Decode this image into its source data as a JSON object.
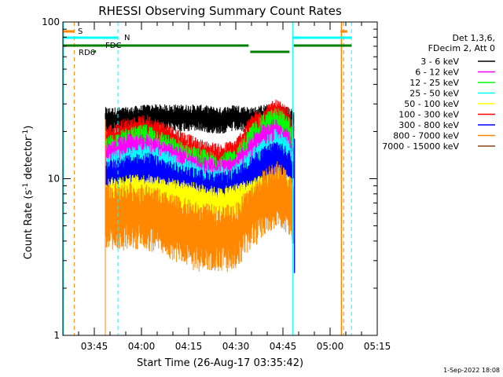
{
  "chart_data": {
    "type": "line",
    "title": "RHESSI Observing Summary Count Rates",
    "xlabel": "Start Time (26-Aug-17 03:35:42)",
    "ylabel": "Count Rate (s⁻¹ detector⁻¹)",
    "ylabel_main": "Count Rate (s",
    "ylabel_sup1": "-1",
    "ylabel_mid": " detector",
    "ylabel_sup2": "-1",
    "ylabel_end": ")",
    "yscale": "log",
    "ylim": [
      1,
      100
    ],
    "xlim_minutes": [
      0,
      100
    ],
    "y_ticks": [
      {
        "value": 1,
        "label": "1"
      },
      {
        "value": 10,
        "label": "10"
      },
      {
        "value": 100,
        "label": "100"
      }
    ],
    "x_ticks": [
      {
        "minute": 10,
        "label": "03:45"
      },
      {
        "minute": 25,
        "label": "04:00"
      },
      {
        "minute": 40,
        "label": "04:15"
      },
      {
        "minute": 55,
        "label": "04:30"
      },
      {
        "minute": 70,
        "label": "04:45"
      },
      {
        "minute": 85,
        "label": "05:00"
      },
      {
        "minute": 100,
        "label": "05:15"
      }
    ],
    "legend": {
      "header1": "Det 1,3,6,",
      "header2": "FDecim 2, Att 0",
      "entries": [
        {
          "label": "3 - 6 keV",
          "color": "#000000"
        },
        {
          "label": "6 - 12 keV",
          "color": "#ff00ff"
        },
        {
          "label": "12 - 25 keV",
          "color": "#00ff00"
        },
        {
          "label": "25 - 50 keV",
          "color": "#00ffff"
        },
        {
          "label": "50 - 100 keV",
          "color": "#ffff00"
        },
        {
          "label": "100 - 300 keV",
          "color": "#ff0000"
        },
        {
          "label": "300 - 800 keV",
          "color": "#0000ff"
        },
        {
          "label": "800 - 7000 keV",
          "color": "#ff8800"
        },
        {
          "label": "7000 - 15000 keV",
          "color": "#8b4513"
        }
      ]
    },
    "markers": {
      "saa_label": "S",
      "night_label": "N",
      "decimation_label": "FDC",
      "rate_decim_label": "RD6",
      "saa_lines_min": [
        3.6,
        89.3
      ],
      "night_lines_min": [
        17.5,
        91.8
      ],
      "saa_bars": [
        [
          0,
          3.5
        ],
        [
          88.3,
          90.5
        ]
      ],
      "night_bars": [
        [
          0,
          17.4
        ],
        [
          73.1,
          91.8
        ]
      ],
      "green_bars": [
        [
          0,
          59.1
        ],
        [
          59.6,
          72.1
        ],
        [
          73.4,
          91.8
        ]
      ],
      "saa_fill_min": [
        [
          13.0,
          13.3
        ],
        [
          88.5,
          88.8
        ]
      ]
    },
    "series": [
      {
        "name": "3 - 6 keV",
        "color": "#000000",
        "x": [
          13.5,
          20,
          27,
          35,
          43,
          50,
          55,
          60,
          64,
          68,
          72,
          73.5
        ],
        "values": [
          24,
          24,
          25,
          25,
          25,
          24,
          25,
          24,
          25,
          25,
          24,
          23
        ]
      },
      {
        "name": "100 - 300 keV",
        "color": "#ff0000",
        "x": [
          13.5,
          20,
          27,
          35,
          43,
          50,
          55,
          60,
          64,
          68,
          72,
          73.5
        ],
        "values": [
          17,
          19,
          20,
          17,
          14,
          13,
          14,
          20,
          23,
          25,
          22,
          17
        ]
      },
      {
        "name": "12 - 25 keV",
        "color": "#00ff00",
        "x": [
          13.5,
          20,
          27,
          35,
          43,
          50,
          55,
          60,
          64,
          68,
          72,
          73.5
        ],
        "values": [
          14,
          16,
          17,
          14,
          12,
          11,
          12,
          17,
          20,
          22,
          19,
          14
        ]
      },
      {
        "name": "6 - 12 keV",
        "color": "#ff00ff",
        "x": [
          13.5,
          20,
          27,
          35,
          43,
          50,
          55,
          60,
          64,
          68,
          72,
          73.5
        ],
        "values": [
          13,
          15,
          15,
          13,
          11,
          10.5,
          11,
          15,
          18,
          19,
          16,
          12
        ]
      },
      {
        "name": "25 - 50 keV",
        "color": "#00ffff",
        "x": [
          13.5,
          20,
          27,
          35,
          43,
          50,
          55,
          60,
          64,
          68,
          72,
          73.5
        ],
        "values": [
          11,
          12,
          13,
          11,
          9.5,
          9,
          9.5,
          12,
          14,
          16,
          14,
          10
        ]
      },
      {
        "name": "300 - 800 keV",
        "color": "#0000ff",
        "x": [
          13.5,
          20,
          27,
          35,
          43,
          50,
          55,
          60,
          64,
          68,
          72,
          73.5
        ],
        "values": [
          10,
          11,
          11.5,
          10,
          9,
          8.5,
          9,
          11,
          12.5,
          14,
          12,
          10
        ]
      },
      {
        "name": "50 - 100 keV",
        "color": "#ffff00",
        "x": [
          13.5,
          20,
          27,
          35,
          43,
          50,
          55,
          60,
          64,
          68,
          72,
          73.5
        ],
        "values": [
          8,
          8.5,
          8.5,
          8,
          7.5,
          7,
          7.5,
          8,
          8.5,
          9,
          8.5,
          8
        ]
      },
      {
        "name": "800 - 7000 keV",
        "color": "#ff8800",
        "x": [
          13.5,
          20,
          27,
          35,
          43,
          50,
          55,
          60,
          64,
          68,
          72,
          73.5
        ],
        "values": [
          6,
          6.2,
          6,
          5.2,
          4.6,
          4.4,
          4.6,
          6,
          7.5,
          8.5,
          7.5,
          6
        ]
      }
    ],
    "annotation": "1-Sep-2022 18:08"
  }
}
